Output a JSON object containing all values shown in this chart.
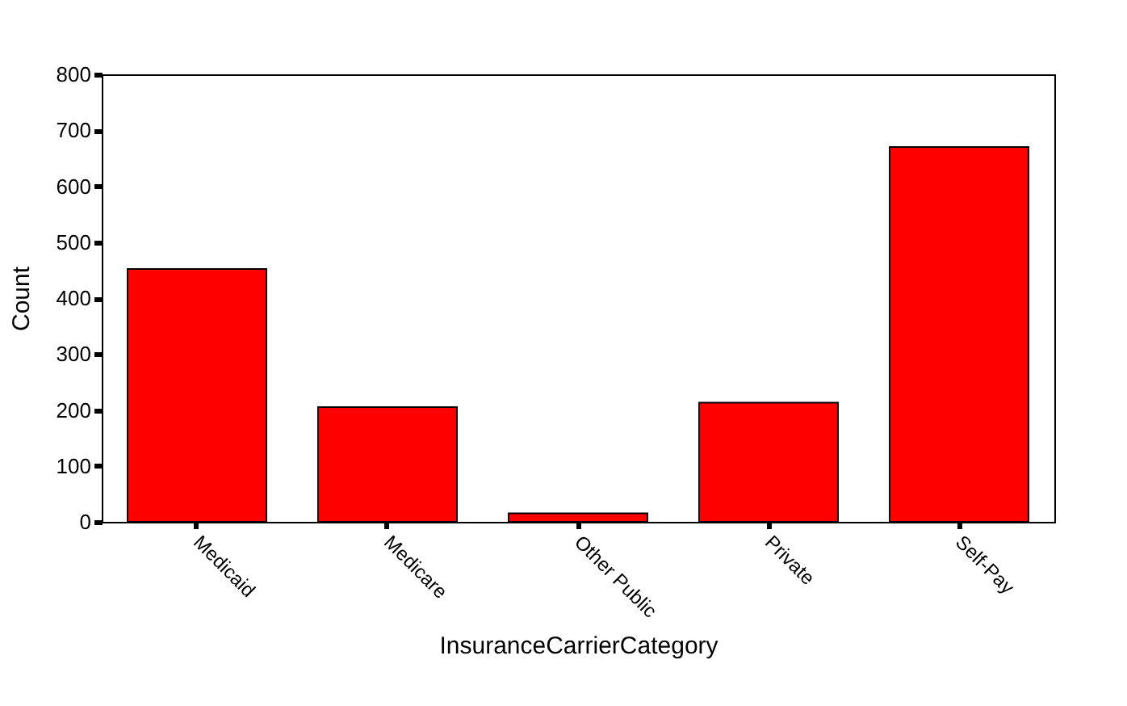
{
  "chart_data": {
    "type": "bar",
    "xlabel": "InsuranceCarrierCategory",
    "ylabel": "Count",
    "categories": [
      "Medicaid",
      "Medicare",
      "Other Public",
      "Private",
      "Self-Pay"
    ],
    "values": [
      452,
      205,
      15,
      213,
      670
    ],
    "color": "#ff0000",
    "ylim": [
      0,
      800
    ],
    "yticks": [
      0,
      100,
      200,
      300,
      400,
      500,
      600,
      700,
      800
    ],
    "grid": false
  }
}
